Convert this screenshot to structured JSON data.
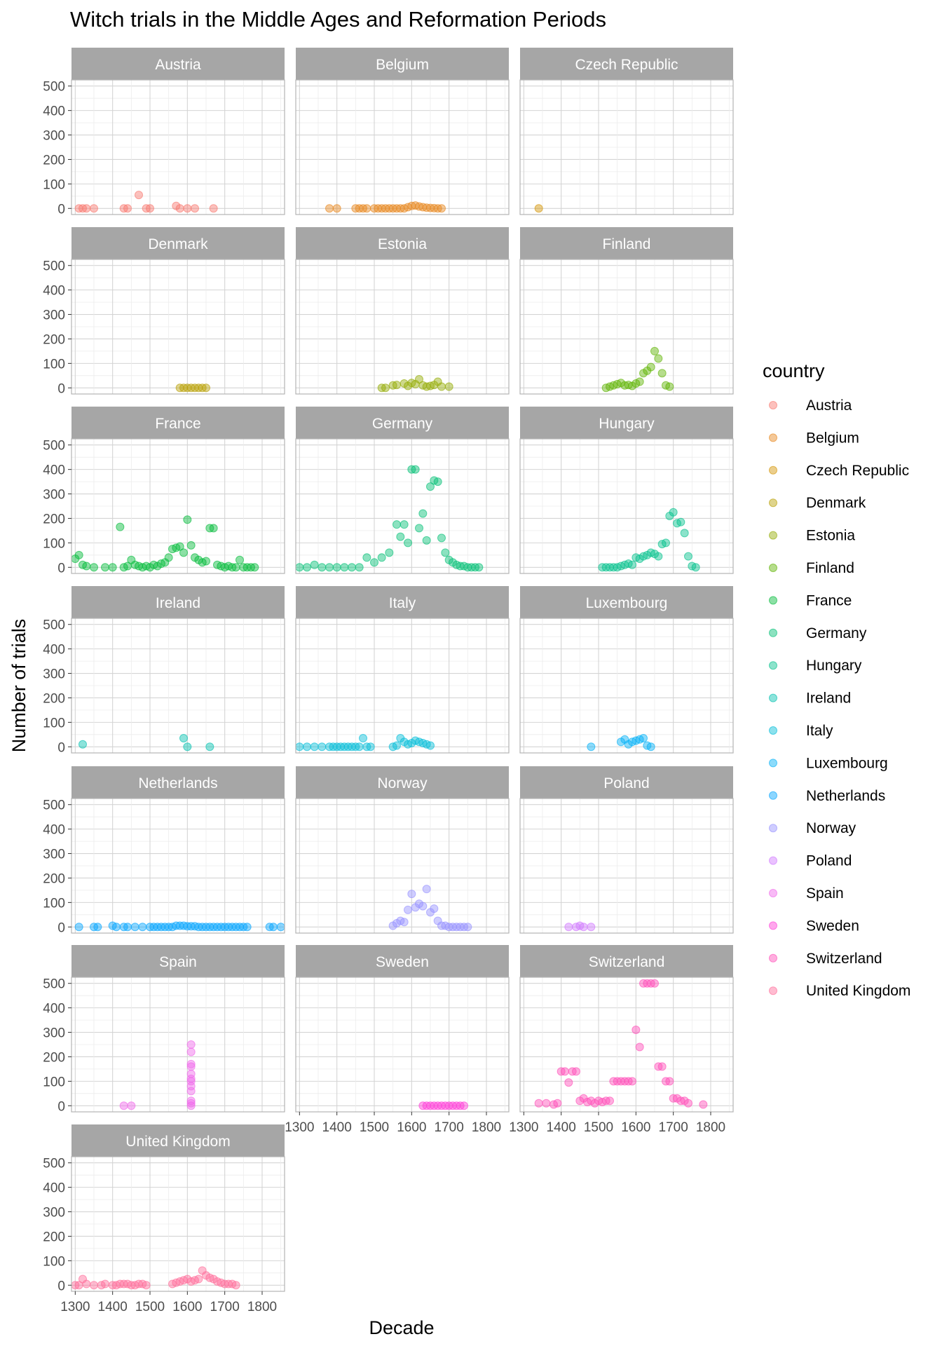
{
  "chart_data": {
    "type": "scatter",
    "title": "Witch trials in the Middle Ages and Reformation Periods",
    "xlabel": "Decade",
    "ylabel": "Number of trials",
    "xlim": [
      1290,
      1860
    ],
    "ylim": [
      -25,
      525
    ],
    "x_ticks": [
      1300,
      1400,
      1500,
      1600,
      1700,
      1800
    ],
    "y_ticks": [
      0,
      100,
      200,
      300,
      400,
      500
    ],
    "facet_columns": 3,
    "grid": true,
    "point_alpha": 0.45,
    "legend": {
      "title": "country",
      "position": "right"
    },
    "series": [
      {
        "name": "Austria",
        "color": "#F8766D",
        "x": [
          1310,
          1320,
          1330,
          1350,
          1430,
          1440,
          1470,
          1490,
          1500,
          1570,
          1580,
          1600,
          1620,
          1670
        ],
        "y": [
          0,
          0,
          0,
          0,
          0,
          0,
          55,
          0,
          0,
          10,
          0,
          0,
          0,
          0
        ]
      },
      {
        "name": "Belgium",
        "color": "#E7861B",
        "x": [
          1380,
          1400,
          1450,
          1460,
          1470,
          1480,
          1500,
          1510,
          1520,
          1530,
          1540,
          1550,
          1560,
          1570,
          1580,
          1590,
          1600,
          1610,
          1620,
          1630,
          1640,
          1650,
          1660,
          1670,
          1680
        ],
        "y": [
          0,
          0,
          0,
          0,
          0,
          0,
          0,
          0,
          0,
          0,
          0,
          0,
          0,
          0,
          0,
          5,
          10,
          12,
          8,
          5,
          3,
          2,
          1,
          0,
          0
        ]
      },
      {
        "name": "Czech Republic",
        "color": "#D39200",
        "x": [
          1340
        ],
        "y": [
          0
        ]
      },
      {
        "name": "Denmark",
        "color": "#B79F00",
        "x": [
          1580,
          1590,
          1600,
          1610,
          1620,
          1630,
          1640,
          1650
        ],
        "y": [
          0,
          0,
          0,
          0,
          0,
          0,
          0,
          0
        ]
      },
      {
        "name": "Estonia",
        "color": "#93AA00",
        "x": [
          1520,
          1530,
          1550,
          1560,
          1580,
          1590,
          1600,
          1610,
          1620,
          1630,
          1640,
          1650,
          1660,
          1670,
          1680,
          1700
        ],
        "y": [
          0,
          0,
          10,
          12,
          18,
          8,
          20,
          15,
          35,
          10,
          5,
          8,
          12,
          25,
          5,
          5
        ]
      },
      {
        "name": "Finland",
        "color": "#5EB300",
        "x": [
          1520,
          1530,
          1540,
          1550,
          1560,
          1570,
          1580,
          1590,
          1600,
          1610,
          1620,
          1630,
          1640,
          1650,
          1660,
          1670,
          1680,
          1690
        ],
        "y": [
          0,
          5,
          10,
          15,
          20,
          10,
          12,
          8,
          18,
          25,
          60,
          70,
          85,
          150,
          120,
          60,
          10,
          5
        ]
      },
      {
        "name": "France",
        "color": "#00BA38",
        "x": [
          1300,
          1310,
          1320,
          1330,
          1350,
          1380,
          1400,
          1420,
          1430,
          1440,
          1450,
          1460,
          1470,
          1480,
          1490,
          1500,
          1510,
          1520,
          1530,
          1540,
          1550,
          1560,
          1570,
          1580,
          1590,
          1600,
          1610,
          1620,
          1630,
          1640,
          1650,
          1660,
          1670,
          1680,
          1690,
          1700,
          1710,
          1720,
          1730,
          1740,
          1750,
          1760,
          1770,
          1780
        ],
        "y": [
          35,
          50,
          10,
          5,
          0,
          0,
          0,
          165,
          0,
          5,
          30,
          10,
          5,
          0,
          5,
          0,
          10,
          5,
          15,
          20,
          40,
          75,
          80,
          85,
          60,
          195,
          90,
          40,
          30,
          20,
          25,
          160,
          160,
          10,
          5,
          0,
          5,
          0,
          0,
          30,
          0,
          0,
          0,
          0
        ]
      },
      {
        "name": "Germany",
        "color": "#00BF74",
        "x": [
          1300,
          1320,
          1340,
          1360,
          1380,
          1400,
          1420,
          1440,
          1460,
          1480,
          1500,
          1520,
          1540,
          1560,
          1570,
          1580,
          1590,
          1600,
          1610,
          1620,
          1630,
          1640,
          1650,
          1660,
          1670,
          1680,
          1690,
          1700,
          1710,
          1720,
          1730,
          1740,
          1750,
          1760,
          1770,
          1780
        ],
        "y": [
          0,
          0,
          10,
          0,
          0,
          0,
          0,
          0,
          0,
          40,
          20,
          40,
          60,
          175,
          125,
          175,
          100,
          400,
          400,
          160,
          220,
          110,
          330,
          355,
          350,
          120,
          60,
          30,
          20,
          10,
          5,
          5,
          0,
          0,
          0,
          0
        ]
      },
      {
        "name": "Hungary",
        "color": "#00C08B",
        "x": [
          1510,
          1520,
          1530,
          1540,
          1550,
          1560,
          1570,
          1580,
          1590,
          1600,
          1610,
          1620,
          1630,
          1640,
          1650,
          1660,
          1670,
          1680,
          1690,
          1700,
          1710,
          1720,
          1730,
          1740,
          1750,
          1760
        ],
        "y": [
          0,
          0,
          0,
          0,
          0,
          5,
          10,
          15,
          10,
          40,
          35,
          45,
          50,
          60,
          55,
          45,
          95,
          100,
          210,
          225,
          180,
          185,
          140,
          45,
          5,
          0
        ]
      },
      {
        "name": "Ireland",
        "color": "#00C0AF",
        "x": [
          1320,
          1590,
          1600,
          1660
        ],
        "y": [
          10,
          35,
          0,
          0
        ]
      },
      {
        "name": "Italy",
        "color": "#00BCD8",
        "x": [
          1300,
          1320,
          1340,
          1360,
          1380,
          1390,
          1400,
          1410,
          1420,
          1430,
          1440,
          1450,
          1460,
          1470,
          1480,
          1490,
          1550,
          1560,
          1570,
          1580,
          1590,
          1600,
          1610,
          1620,
          1630,
          1640,
          1650
        ],
        "y": [
          0,
          0,
          0,
          0,
          0,
          0,
          0,
          0,
          0,
          0,
          0,
          0,
          0,
          35,
          0,
          0,
          0,
          5,
          35,
          20,
          10,
          15,
          25,
          20,
          15,
          10,
          5
        ]
      },
      {
        "name": "Luxembourg",
        "color": "#00B0F6",
        "x": [
          1480,
          1560,
          1570,
          1580,
          1590,
          1600,
          1610,
          1620,
          1630,
          1640
        ],
        "y": [
          0,
          20,
          30,
          10,
          20,
          25,
          30,
          35,
          5,
          0
        ]
      },
      {
        "name": "Netherlands",
        "color": "#00A4FF",
        "x": [
          1310,
          1350,
          1360,
          1400,
          1410,
          1430,
          1440,
          1460,
          1480,
          1500,
          1510,
          1520,
          1530,
          1540,
          1550,
          1560,
          1570,
          1580,
          1590,
          1600,
          1610,
          1620,
          1630,
          1640,
          1650,
          1660,
          1670,
          1680,
          1690,
          1700,
          1710,
          1720,
          1730,
          1740,
          1750,
          1760,
          1820,
          1830,
          1850
        ],
        "y": [
          0,
          0,
          0,
          5,
          0,
          0,
          0,
          0,
          0,
          0,
          0,
          0,
          0,
          0,
          0,
          0,
          5,
          5,
          5,
          3,
          3,
          3,
          0,
          0,
          0,
          0,
          0,
          0,
          0,
          0,
          0,
          0,
          0,
          0,
          0,
          0,
          0,
          0,
          0
        ]
      },
      {
        "name": "Norway",
        "color": "#9590FF",
        "x": [
          1550,
          1560,
          1570,
          1580,
          1590,
          1600,
          1610,
          1620,
          1630,
          1640,
          1650,
          1660,
          1670,
          1680,
          1690,
          1700,
          1710,
          1720,
          1730,
          1740,
          1750
        ],
        "y": [
          5,
          15,
          25,
          20,
          70,
          135,
          80,
          95,
          85,
          155,
          60,
          75,
          25,
          5,
          5,
          0,
          0,
          0,
          0,
          0,
          0
        ]
      },
      {
        "name": "Poland",
        "color": "#D177FF",
        "x": [
          1420,
          1440,
          1450,
          1460,
          1480
        ],
        "y": [
          0,
          0,
          5,
          0,
          0
        ]
      },
      {
        "name": "Spain",
        "color": "#F066EA",
        "x": [
          1430,
          1450,
          1610,
          1610,
          1610,
          1610,
          1610,
          1610,
          1610,
          1610,
          1610,
          1610,
          1610,
          1610
        ],
        "y": [
          0,
          0,
          0,
          10,
          20,
          60,
          80,
          100,
          110,
          130,
          160,
          170,
          220,
          250
        ]
      },
      {
        "name": "Sweden",
        "color": "#FF3CD8",
        "x": [
          1630,
          1640,
          1650,
          1660,
          1670,
          1680,
          1690,
          1700,
          1710,
          1720,
          1730,
          1740
        ],
        "y": [
          0,
          0,
          0,
          0,
          0,
          0,
          0,
          0,
          0,
          0,
          0,
          0
        ]
      },
      {
        "name": "Switzerland",
        "color": "#FF4CB7",
        "x": [
          1340,
          1360,
          1380,
          1390,
          1400,
          1410,
          1420,
          1430,
          1440,
          1450,
          1460,
          1470,
          1480,
          1490,
          1500,
          1510,
          1520,
          1530,
          1540,
          1550,
          1560,
          1570,
          1580,
          1590,
          1600,
          1610,
          1620,
          1630,
          1640,
          1650,
          1660,
          1670,
          1680,
          1690,
          1700,
          1710,
          1720,
          1730,
          1740,
          1780
        ],
        "y": [
          10,
          10,
          5,
          10,
          140,
          140,
          95,
          140,
          140,
          20,
          30,
          15,
          20,
          10,
          20,
          15,
          20,
          20,
          100,
          100,
          100,
          100,
          100,
          100,
          310,
          240,
          500,
          500,
          500,
          500,
          160,
          160,
          100,
          100,
          30,
          30,
          20,
          20,
          10,
          5
        ]
      },
      {
        "name": "United Kingdom",
        "color": "#FF6A98",
        "x": [
          1300,
          1310,
          1320,
          1330,
          1350,
          1370,
          1380,
          1400,
          1410,
          1420,
          1430,
          1440,
          1450,
          1460,
          1470,
          1480,
          1490,
          1560,
          1570,
          1580,
          1590,
          1600,
          1610,
          1620,
          1630,
          1640,
          1650,
          1660,
          1670,
          1680,
          1690,
          1700,
          1710,
          1720,
          1730
        ],
        "y": [
          0,
          0,
          25,
          5,
          0,
          0,
          5,
          0,
          0,
          5,
          5,
          5,
          0,
          0,
          5,
          5,
          0,
          5,
          10,
          15,
          20,
          25,
          15,
          20,
          25,
          60,
          40,
          30,
          25,
          15,
          10,
          5,
          5,
          5,
          0
        ]
      }
    ]
  }
}
